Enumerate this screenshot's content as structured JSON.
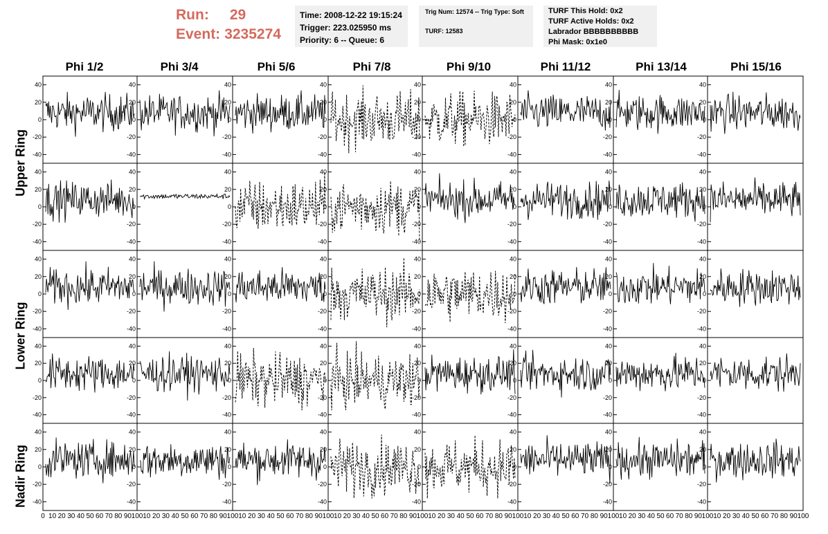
{
  "header": {
    "run_label": "Run:",
    "run_value": "29",
    "event_label": "Event:",
    "event_value": "3235274",
    "time_box": {
      "time": "Time: 2008-12-22 19:15:24",
      "trigger": "Trigger: 223.025950 ms",
      "priority": "Priority: 6 -- Queue: 6"
    },
    "trig_box": {
      "trig": "Trig Num: 12574 -- Trig Type: Soft",
      "turf": "TURF: 12583"
    },
    "turf_box": {
      "hold": "TURF This Hold: 0x2",
      "active": "TURF Active Holds: 0x2",
      "labrador": "Labrador BBBBBBBBBB",
      "phimask": "Phi Mask: 0x1e0"
    }
  },
  "columns": [
    "Phi 1/2",
    "Phi 3/4",
    "Phi 5/6",
    "Phi 7/8",
    "Phi 9/10",
    "Phi 11/12",
    "Phi 13/14",
    "Phi 15/16"
  ],
  "rows": [
    "Upper Ring",
    "Lower Ring",
    "Nadir Ring"
  ],
  "axes": {
    "y_ticks": [
      "40",
      "20",
      "0",
      "-20",
      "-40"
    ],
    "y_range": [
      -50,
      50
    ],
    "x_range": [
      0,
      100
    ],
    "x_labels": {
      "first": [
        "0",
        "10",
        "20",
        "30",
        "40",
        "50",
        "60",
        "70",
        "80",
        "90",
        "100"
      ],
      "other": [
        "10",
        "20",
        "30",
        "40",
        "50",
        "60",
        "70",
        "80",
        "90",
        "100"
      ]
    }
  },
  "panels": [
    [
      "solid",
      "solid",
      "solid",
      "dashed",
      "dashed",
      "solid",
      "solid",
      "solid"
    ],
    [
      "solid",
      "flat",
      "dashed",
      "dashed",
      "solid",
      "solid",
      "solid",
      "solid"
    ],
    [
      "solid",
      "solid",
      "solid",
      "dashed",
      "dashed",
      "solid",
      "solid",
      "solid"
    ],
    [
      "solid",
      "solid",
      "dashed",
      "dashed",
      "solid",
      "solid",
      "solid",
      "solid"
    ],
    [
      "solid",
      "solid",
      "solid",
      "dashed",
      "dashed",
      "solid",
      "solid",
      "solid"
    ]
  ]
}
